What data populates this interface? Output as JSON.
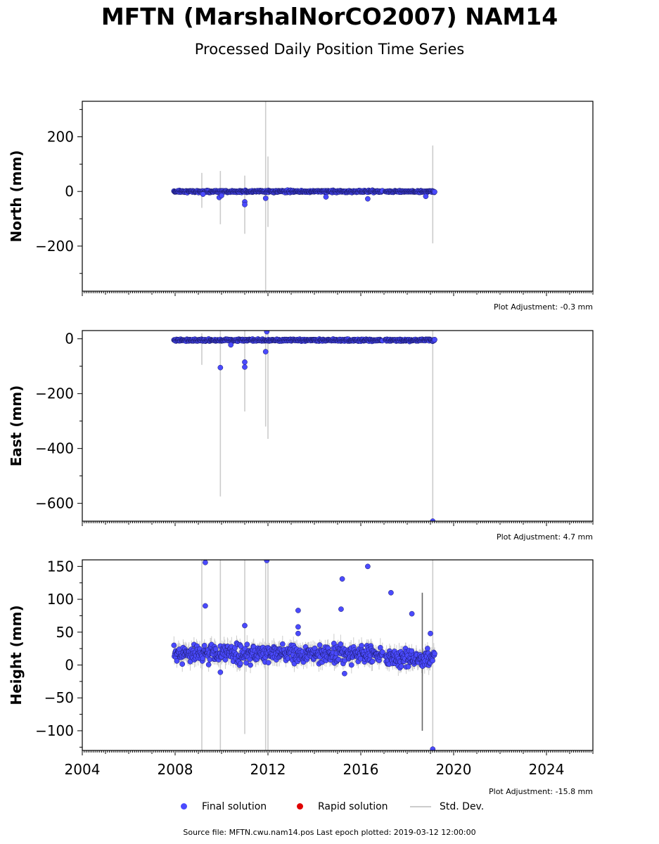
{
  "header": {
    "title": "MFTN (MarshalNorCO2007) NAM14",
    "subtitle": "Processed Daily Position Time Series"
  },
  "legend": {
    "final_label": "Final solution",
    "rapid_label": "Rapid solution",
    "std_label": "Std. Dev."
  },
  "footer": {
    "source_text": "Source file: MFTN.cwu.nam14.pos  Last epoch plotted: 2019-03-12 12:00:00"
  },
  "colors": {
    "final": "#4a4aff",
    "final_edge": "#1a1a66",
    "rapid": "#e00000",
    "std": "#cccccc"
  },
  "chart_data": [
    {
      "type": "scatter",
      "ylabel": "North (mm)",
      "xlim": [
        2004,
        2026
      ],
      "ylim": [
        -365,
        330
      ],
      "yticks": [
        -200,
        0,
        200
      ],
      "x_tick_labels": [],
      "adjustment": "Plot Adjustment: -0.3 mm",
      "data_span": [
        2007.95,
        2019.19
      ],
      "baseline": 0,
      "noise": 3,
      "std_typical": 4,
      "outliers": [
        {
          "x": 2009.2,
          "y": -10
        },
        {
          "x": 2009.9,
          "y": -22
        },
        {
          "x": 2010.0,
          "y": -15
        },
        {
          "x": 2011.0,
          "y": -38
        },
        {
          "x": 2011.0,
          "y": -48
        },
        {
          "x": 2011.9,
          "y": -25
        },
        {
          "x": 2016.3,
          "y": -27
        },
        {
          "x": 2014.5,
          "y": -20
        },
        {
          "x": 2018.8,
          "y": -18
        }
      ],
      "big_std": [
        {
          "x": 2009.15,
          "lo": -60,
          "hi": 68
        },
        {
          "x": 2009.95,
          "lo": -120,
          "hi": 75
        },
        {
          "x": 2011.0,
          "lo": -155,
          "hi": 58
        },
        {
          "x": 2011.9,
          "lo": -365,
          "hi": 330
        },
        {
          "x": 2012.0,
          "lo": -130,
          "hi": 128
        },
        {
          "x": 2019.1,
          "lo": -190,
          "hi": 168
        }
      ]
    },
    {
      "type": "scatter",
      "ylabel": "East (mm)",
      "xlim": [
        2004,
        2026
      ],
      "ylim": [
        -665,
        30
      ],
      "yticks": [
        -600,
        -400,
        -200,
        0
      ],
      "x_tick_labels": [],
      "adjustment": "Plot Adjustment: 4.7 mm",
      "data_span": [
        2007.95,
        2019.19
      ],
      "baseline": -5,
      "noise": 3,
      "std_typical": 6,
      "outliers": [
        {
          "x": 2009.95,
          "y": -105
        },
        {
          "x": 2011.0,
          "y": -85
        },
        {
          "x": 2011.0,
          "y": -103
        },
        {
          "x": 2011.9,
          "y": -47
        },
        {
          "x": 2011.95,
          "y": 26
        },
        {
          "x": 2010.4,
          "y": -22
        },
        {
          "x": 2019.1,
          "y": -665
        }
      ],
      "big_std": [
        {
          "x": 2009.15,
          "lo": -95,
          "hi": 20
        },
        {
          "x": 2009.95,
          "lo": -575,
          "hi": 30
        },
        {
          "x": 2011.0,
          "lo": -265,
          "hi": 30
        },
        {
          "x": 2011.9,
          "lo": -320,
          "hi": 30
        },
        {
          "x": 2012.0,
          "lo": -365,
          "hi": 30
        },
        {
          "x": 2019.1,
          "lo": -665,
          "hi": 30
        }
      ]
    },
    {
      "type": "scatter",
      "ylabel": "Height (mm)",
      "xlim": [
        2004,
        2026
      ],
      "ylim": [
        -130,
        160
      ],
      "yticks": [
        -100,
        -50,
        0,
        50,
        100,
        150
      ],
      "x_tick_labels": [
        "2004",
        "2008",
        "2012",
        "2016",
        "2020",
        "2024"
      ],
      "adjustment": "Plot Adjustment: -15.8 mm",
      "data_span": [
        2007.95,
        2019.19
      ],
      "baseline": 17,
      "noise": 11,
      "std_typical": 10,
      "outliers": [
        {
          "x": 2009.3,
          "y": 156
        },
        {
          "x": 2009.3,
          "y": 90
        },
        {
          "x": 2011.95,
          "y": 159
        },
        {
          "x": 2015.2,
          "y": 131
        },
        {
          "x": 2015.15,
          "y": 85
        },
        {
          "x": 2016.3,
          "y": 150
        },
        {
          "x": 2013.3,
          "y": 83
        },
        {
          "x": 2013.3,
          "y": 58
        },
        {
          "x": 2013.3,
          "y": 48
        },
        {
          "x": 2017.3,
          "y": 110
        },
        {
          "x": 2018.2,
          "y": 78
        },
        {
          "x": 2011.0,
          "y": 60
        },
        {
          "x": 2019.0,
          "y": 48
        },
        {
          "x": 2009.95,
          "y": -11
        },
        {
          "x": 2019.1,
          "y": -128
        },
        {
          "x": 2015.3,
          "y": -13
        }
      ],
      "big_std": [
        {
          "x": 2009.15,
          "lo": -130,
          "hi": 160
        },
        {
          "x": 2009.95,
          "lo": -130,
          "hi": 160
        },
        {
          "x": 2011.0,
          "lo": -105,
          "hi": 160
        },
        {
          "x": 2011.9,
          "lo": -130,
          "hi": 160
        },
        {
          "x": 2012.0,
          "lo": -130,
          "hi": 160
        },
        {
          "x": 2019.1,
          "lo": -130,
          "hi": 160
        }
      ],
      "dark_std": [
        {
          "x": 2018.65,
          "lo": -100,
          "hi": 110
        }
      ]
    }
  ]
}
